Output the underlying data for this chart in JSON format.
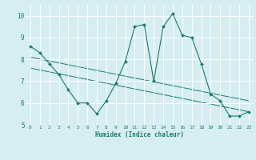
{
  "title": "",
  "xlabel": "Humidex (Indice chaleur)",
  "ylabel": "",
  "bg_color": "#d6eef2",
  "grid_color": "#ffffff",
  "line_color": "#1a7a6e",
  "xlim": [
    -0.5,
    23.5
  ],
  "ylim": [
    5,
    10.5
  ],
  "yticks": [
    5,
    6,
    7,
    8,
    9,
    10
  ],
  "xticks": [
    0,
    1,
    2,
    3,
    4,
    5,
    6,
    7,
    8,
    9,
    10,
    11,
    12,
    13,
    14,
    15,
    16,
    17,
    18,
    19,
    20,
    21,
    22,
    23
  ],
  "main_x": [
    0,
    1,
    2,
    3,
    4,
    5,
    6,
    7,
    8,
    9,
    10,
    11,
    12,
    13,
    14,
    15,
    16,
    17,
    18,
    19,
    20,
    21,
    22,
    23
  ],
  "main_y": [
    8.6,
    8.3,
    7.8,
    7.3,
    6.6,
    6.0,
    6.0,
    5.5,
    6.1,
    6.9,
    7.9,
    9.5,
    9.6,
    7.0,
    9.5,
    10.1,
    9.1,
    9.0,
    7.8,
    6.4,
    6.1,
    5.4,
    5.4,
    5.6
  ],
  "trend1_x": [
    0,
    23
  ],
  "trend1_y": [
    8.1,
    6.1
  ],
  "trend2_x": [
    0,
    23
  ],
  "trend2_y": [
    7.6,
    5.6
  ]
}
